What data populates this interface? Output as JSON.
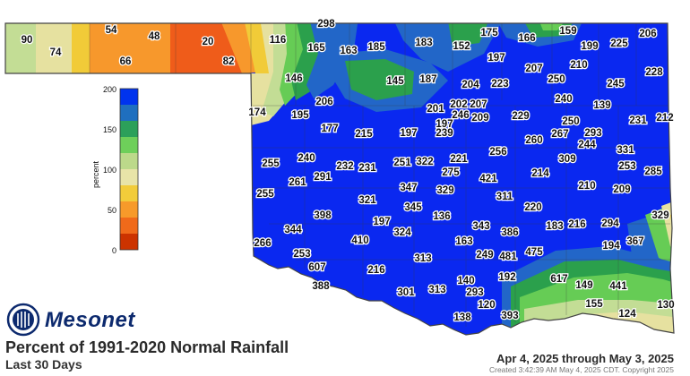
{
  "title": "Percent of 1991-2020 Normal Rainfall",
  "subtitle": "Last 30 Days",
  "date_range": "Apr 4, 2025 through May 3, 2025",
  "created": "Created 3:42:39 AM May 4, 2025 CDT. Copyright 2025",
  "brand": "Mesonet",
  "legend": {
    "label": "percent",
    "ticks": [
      "200",
      "150",
      "100",
      "50",
      "0"
    ],
    "colors": [
      "#0033ee",
      "#1f6fbf",
      "#2ca05a",
      "#6ecf5a",
      "#bcd98a",
      "#e8e4a8",
      "#f2cc3a",
      "#f79a2a",
      "#f06a1a",
      "#cc3300"
    ]
  },
  "colors": {
    "over200": "#0a28f0",
    "r175": "#2266c8",
    "r150": "#2ba04c",
    "r125": "#66cc55",
    "r100": "#c3dd95",
    "r75": "#e6e1a0",
    "r50": "#f1cb38",
    "r25": "#f7982c",
    "r0": "#ef5c1a"
  },
  "stations": [
    {
      "v": "298"
    },
    {
      "v": "90"
    },
    {
      "v": "74"
    },
    {
      "v": "54"
    },
    {
      "v": "48"
    },
    {
      "v": "66"
    },
    {
      "v": "20"
    },
    {
      "v": "82"
    },
    {
      "v": "116"
    },
    {
      "v": "165"
    },
    {
      "v": "163"
    },
    {
      "v": "185"
    },
    {
      "v": "183"
    },
    {
      "v": "152"
    },
    {
      "v": "175"
    },
    {
      "v": "166"
    },
    {
      "v": "159"
    },
    {
      "v": "199"
    },
    {
      "v": "225"
    },
    {
      "v": "206"
    },
    {
      "v": "197"
    },
    {
      "v": "207"
    },
    {
      "v": "210"
    },
    {
      "v": "228"
    },
    {
      "v": "146"
    },
    {
      "v": "145"
    },
    {
      "v": "187"
    },
    {
      "v": "204"
    },
    {
      "v": "223"
    },
    {
      "v": "250"
    },
    {
      "v": "245"
    },
    {
      "v": "206"
    },
    {
      "v": "201"
    },
    {
      "v": "197"
    },
    {
      "v": "202"
    },
    {
      "v": "207"
    },
    {
      "v": "246"
    },
    {
      "v": "209"
    },
    {
      "v": "240"
    },
    {
      "v": "139"
    },
    {
      "v": "174"
    },
    {
      "v": "195"
    },
    {
      "v": "177"
    },
    {
      "v": "215"
    },
    {
      "v": "197"
    },
    {
      "v": "239"
    },
    {
      "v": "229"
    },
    {
      "v": "250"
    },
    {
      "v": "231"
    },
    {
      "v": "212"
    },
    {
      "v": "260"
    },
    {
      "v": "267"
    },
    {
      "v": "293"
    },
    {
      "v": "244"
    },
    {
      "v": "256"
    },
    {
      "v": "331"
    },
    {
      "v": "309"
    },
    {
      "v": "255"
    },
    {
      "v": "240"
    },
    {
      "v": "232"
    },
    {
      "v": "231"
    },
    {
      "v": "251"
    },
    {
      "v": "322"
    },
    {
      "v": "221"
    },
    {
      "v": "253"
    },
    {
      "v": "285"
    },
    {
      "v": "261"
    },
    {
      "v": "291"
    },
    {
      "v": "275"
    },
    {
      "v": "421"
    },
    {
      "v": "214"
    },
    {
      "v": "210"
    },
    {
      "v": "209"
    },
    {
      "v": "255"
    },
    {
      "v": "321"
    },
    {
      "v": "347"
    },
    {
      "v": "329"
    },
    {
      "v": "311"
    },
    {
      "v": "345"
    },
    {
      "v": "220"
    },
    {
      "v": "398"
    },
    {
      "v": "136"
    },
    {
      "v": "329"
    },
    {
      "v": "197"
    },
    {
      "v": "183"
    },
    {
      "v": "216"
    },
    {
      "v": "294"
    },
    {
      "v": "266"
    },
    {
      "v": "344"
    },
    {
      "v": "324"
    },
    {
      "v": "343"
    },
    {
      "v": "386"
    },
    {
      "v": "410"
    },
    {
      "v": "163"
    },
    {
      "v": "194"
    },
    {
      "v": "367"
    },
    {
      "v": "253"
    },
    {
      "v": "475"
    },
    {
      "v": "313"
    },
    {
      "v": "249"
    },
    {
      "v": "481"
    },
    {
      "v": "607"
    },
    {
      "v": "216"
    },
    {
      "v": "192"
    },
    {
      "v": "617"
    },
    {
      "v": "388"
    },
    {
      "v": "140"
    },
    {
      "v": "149"
    },
    {
      "v": "441"
    },
    {
      "v": "301"
    },
    {
      "v": "313"
    },
    {
      "v": "293"
    },
    {
      "v": "120"
    },
    {
      "v": "130"
    },
    {
      "v": "155"
    },
    {
      "v": "393"
    },
    {
      "v": "138"
    },
    {
      "v": "124"
    }
  ]
}
